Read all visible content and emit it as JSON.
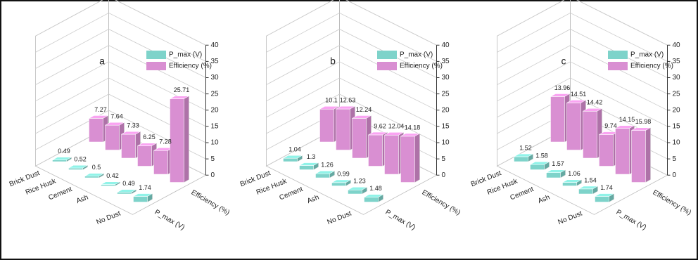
{
  "chart_data": [
    {
      "type": "bar3d",
      "title": "a",
      "categories": [
        "Brick Dust",
        "Rice Husk",
        "Cement",
        "Ash",
        null,
        "No Dust"
      ],
      "series": [
        {
          "name": "P_max (V)",
          "color": "#7ed3ca",
          "values": [
            0.49,
            0.52,
            0.5,
            0.42,
            0.49,
            1.74
          ]
        },
        {
          "name": "Efficiency (%)",
          "color": "#d98fd2",
          "values": [
            7.27,
            7.64,
            7.33,
            6.25,
            7.28,
            25.71
          ]
        }
      ],
      "ylim": [
        0,
        40
      ],
      "yticks": [
        0,
        5,
        10,
        15,
        20,
        25,
        30,
        35,
        40
      ],
      "grid": true,
      "legend": "top"
    },
    {
      "type": "bar3d",
      "title": "b",
      "categories": [
        "Brick Dust",
        "Rice Husk",
        "Cement",
        "Ash",
        null,
        "No Dust"
      ],
      "series": [
        {
          "name": "P_max (V)",
          "color": "#7ed3ca",
          "values": [
            1.04,
            1.3,
            1.26,
            0.99,
            1.23,
            1.48
          ]
        },
        {
          "name": "Efficiency (%)",
          "color": "#d98fd2",
          "values": [
            10.1,
            12.63,
            12.24,
            9.62,
            12.04,
            14.18
          ]
        }
      ],
      "ylim": [
        0,
        40
      ],
      "yticks": [
        0,
        5,
        10,
        15,
        20,
        25,
        30,
        35,
        40
      ],
      "grid": true,
      "legend": "top"
    },
    {
      "type": "bar3d",
      "title": "c",
      "categories": [
        "Brick Dust",
        "Rice Husk",
        "Cement",
        "Ash",
        null,
        "No Dust"
      ],
      "series": [
        {
          "name": "P_max (V)",
          "color": "#7ed3ca",
          "values": [
            1.52,
            1.58,
            1.57,
            1.06,
            1.54,
            1.74
          ]
        },
        {
          "name": "Efficiency (%)",
          "color": "#d98fd2",
          "values": [
            13.96,
            14.51,
            14.42,
            9.74,
            14.15,
            15.98
          ]
        }
      ],
      "ylim": [
        0,
        40
      ],
      "yticks": [
        0,
        5,
        10,
        15,
        20,
        25,
        30,
        35,
        40
      ],
      "grid": true,
      "legend": "top"
    }
  ]
}
